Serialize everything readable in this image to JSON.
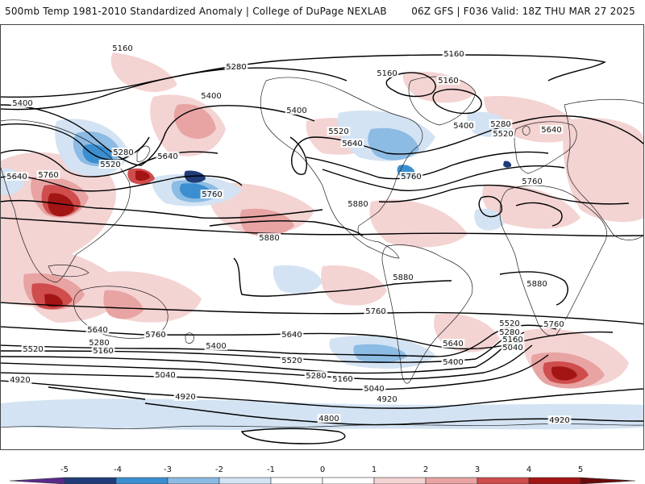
{
  "header": {
    "left": "500mb Temp 1981-2010 Standardized Anomaly | College of DuPage NEXLAB",
    "right": "06Z GFS | F036 Valid: 18Z THU MAR 27 2025"
  },
  "map": {
    "colors": {
      "n5": "#5a2a8a",
      "n4": "#1f3c78",
      "n3": "#3b8fd0",
      "n2": "#8cbbe4",
      "n1": "#d3e3f3",
      "p1": "#f4d3d3",
      "p2": "#e8a3a3",
      "p3": "#cf4d4d",
      "p4": "#a31515",
      "p5": "#6a0a0a",
      "p6": "#f0c020"
    },
    "contour_labels": [
      {
        "id": "l5160a",
        "text": "5160"
      },
      {
        "id": "l5280a",
        "text": "5280"
      },
      {
        "id": "l5160b",
        "text": "5160"
      },
      {
        "id": "l5160c",
        "text": "5160"
      },
      {
        "id": "l5160d",
        "text": "5160"
      },
      {
        "id": "l5400a",
        "text": "5400"
      },
      {
        "id": "l5400b",
        "text": "5400"
      },
      {
        "id": "l5400c",
        "text": "5400"
      },
      {
        "id": "l5400d",
        "text": "5400"
      },
      {
        "id": "l5280b",
        "text": "5280"
      },
      {
        "id": "l5520a",
        "text": "5520"
      },
      {
        "id": "l5640a",
        "text": "5640"
      },
      {
        "id": "l5280c",
        "text": "5280"
      },
      {
        "id": "l5520b",
        "text": "5520"
      },
      {
        "id": "l5640b",
        "text": "5640"
      },
      {
        "id": "l5520c",
        "text": "5520"
      },
      {
        "id": "l5640c",
        "text": "5640"
      },
      {
        "id": "l5640d",
        "text": "5640"
      },
      {
        "id": "l5760a",
        "text": "5760"
      },
      {
        "id": "l5760b",
        "text": "5760"
      },
      {
        "id": "l5760c",
        "text": "5760"
      },
      {
        "id": "l5760d",
        "text": "5760"
      },
      {
        "id": "l5880a",
        "text": "5880"
      },
      {
        "id": "l5880b",
        "text": "5880"
      },
      {
        "id": "l5880c",
        "text": "5880"
      },
      {
        "id": "l5880d",
        "text": "5880"
      },
      {
        "id": "l5760e",
        "text": "5760"
      },
      {
        "id": "l5640e",
        "text": "5640"
      },
      {
        "id": "l5760f",
        "text": "5760"
      },
      {
        "id": "l5640f",
        "text": "5640"
      },
      {
        "id": "l5520d",
        "text": "5520"
      },
      {
        "id": "l5280d",
        "text": "5280"
      },
      {
        "id": "l5160e",
        "text": "5160"
      },
      {
        "id": "l5400e",
        "text": "5400"
      },
      {
        "id": "l5520e",
        "text": "5520"
      },
      {
        "id": "l5280e",
        "text": "5280"
      },
      {
        "id": "l5160f",
        "text": "5160"
      },
      {
        "id": "l5040a",
        "text": "5040"
      },
      {
        "id": "l5040b",
        "text": "5040"
      },
      {
        "id": "l4920a",
        "text": "4920"
      },
      {
        "id": "l4920b",
        "text": "4920"
      },
      {
        "id": "l4920c",
        "text": "4920"
      },
      {
        "id": "l4800a",
        "text": "4800"
      },
      {
        "id": "l4920d",
        "text": "4920"
      },
      {
        "id": "l5640g",
        "text": "5640"
      },
      {
        "id": "l5400f",
        "text": "5400"
      },
      {
        "id": "l5520f",
        "text": "5520"
      },
      {
        "id": "l5280f",
        "text": "5280"
      },
      {
        "id": "l5160g",
        "text": "5160"
      },
      {
        "id": "l5040c",
        "text": "5040"
      },
      {
        "id": "l5760g",
        "text": "5760"
      }
    ]
  },
  "colorbar": {
    "ticks": [
      "-5",
      "-4",
      "-3",
      "-2",
      "-1",
      "0",
      "1",
      "2",
      "3",
      "4",
      "5"
    ],
    "colors": [
      "#5a2a8a",
      "#1f3c78",
      "#3b8fd0",
      "#8cbbe4",
      "#d3e3f3",
      "#ffffff",
      "#ffffff",
      "#f4d3d3",
      "#e8a3a3",
      "#cf4d4d",
      "#a31515",
      "#6a0a0a",
      "#f0c020"
    ]
  }
}
